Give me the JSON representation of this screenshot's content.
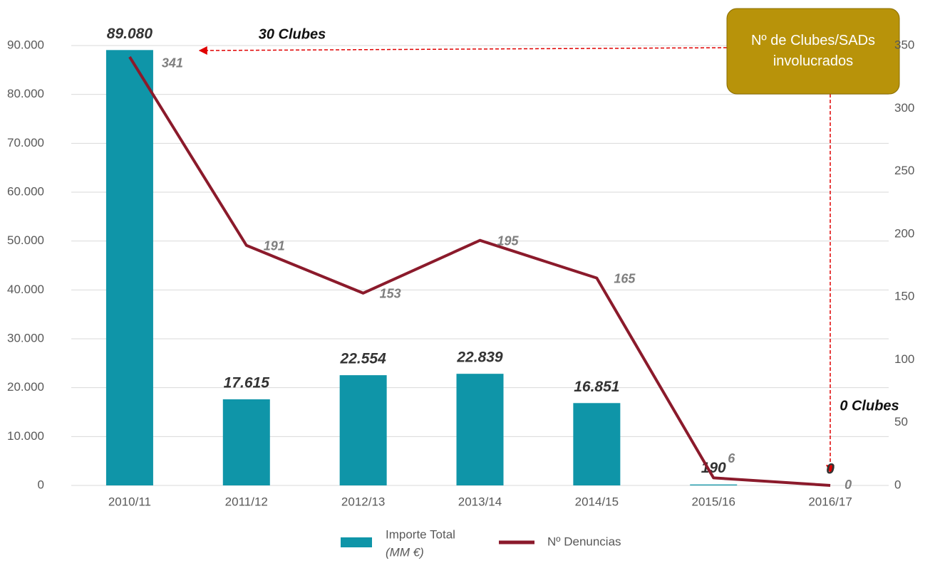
{
  "chart_data": {
    "type": "bar_line",
    "categories": [
      "2010/11",
      "2011/12",
      "2012/13",
      "2013/14",
      "2014/15",
      "2015/16",
      "2016/17"
    ],
    "series": [
      {
        "name": "Importe Total",
        "unit_label": "(MM €)",
        "type": "bar",
        "color": "#0f95a8",
        "axis": "y",
        "values": [
          89080,
          17615,
          22554,
          22839,
          16851,
          190,
          0
        ],
        "value_labels": [
          "89.080",
          "17.615",
          "22.554",
          "22.839",
          "16.851",
          "190",
          "0"
        ]
      },
      {
        "name": "Nº Denuncias",
        "type": "line",
        "color": "#8b1a2b",
        "axis": "y2",
        "values": [
          341,
          191,
          153,
          195,
          165,
          6,
          0
        ]
      }
    ],
    "ylim": [
      0,
      90000
    ],
    "yticks": [
      0,
      {
        "value": 10000,
        "label": "10.000"
      },
      {
        "value": 20000,
        "label": "20.000"
      },
      {
        "value": 30000,
        "label": "30.000"
      },
      {
        "value": 40000,
        "label": "40.000"
      },
      {
        "value": 50000,
        "label": "50.000"
      },
      {
        "value": 60000,
        "label": "60.000"
      },
      {
        "value": 70000,
        "label": "70.000"
      },
      {
        "value": 80000,
        "label": "80.000"
      },
      {
        "value": 90000,
        "label": "90.000"
      }
    ],
    "y2lim": [
      0,
      350
    ],
    "y2ticks": [
      0,
      50,
      100,
      150,
      200,
      250,
      300,
      350
    ],
    "grid": true,
    "legend": "bottom",
    "annotations": [
      "30 Clubes",
      "0 Clubes",
      "Nº de Clubes/SADs involucrados"
    ]
  }
}
